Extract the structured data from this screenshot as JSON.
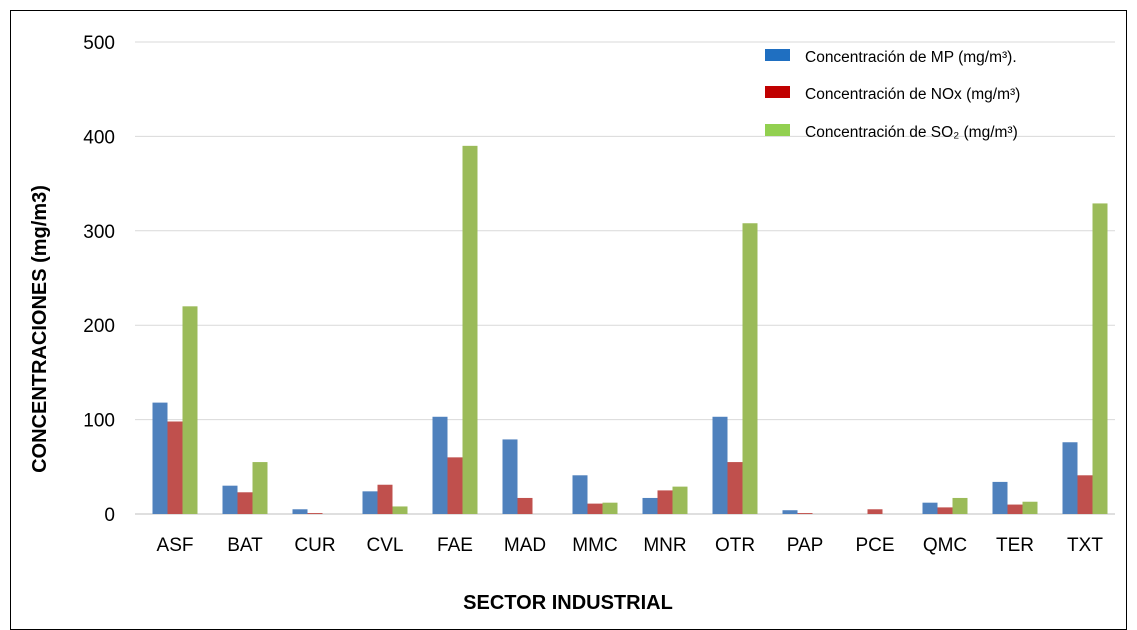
{
  "chart_data": {
    "type": "bar",
    "title": "",
    "xlabel": "SECTOR INDUSTRIAL",
    "ylabel": "CONCENTRACIONES (mg/m3)",
    "ylim": [
      0,
      500
    ],
    "yticks": [
      "0",
      "100",
      "200",
      "300",
      "400",
      "500"
    ],
    "grid": true,
    "legend_position": "top-right",
    "categories": [
      "ASF",
      "BAT",
      "CUR",
      "CVL",
      "FAE",
      "MAD",
      "MMC",
      "MNR",
      "OTR",
      "PAP",
      "PCE",
      "QMC",
      "TER",
      "TXT"
    ],
    "series": [
      {
        "name": "Concentración de MP (mg/m³).",
        "color": "#4f81bd",
        "values": [
          118,
          30,
          5,
          24,
          103,
          79,
          41,
          17,
          103,
          4,
          0,
          12,
          34,
          76
        ]
      },
      {
        "name": "Concentración de NOx (mg/m³)",
        "color": "#c0504d",
        "values": [
          98,
          23,
          1,
          31,
          60,
          17,
          11,
          25,
          55,
          1,
          5,
          7,
          10,
          41
        ]
      },
      {
        "name": "Concentración de SO₂ (mg/m³)",
        "color": "#9bbb59",
        "values": [
          220,
          55,
          0,
          8,
          390,
          0,
          12,
          29,
          308,
          0,
          0,
          17,
          13,
          329
        ]
      }
    ],
    "legend_swatch_colors": [
      "#1f6fc1",
      "#c00000",
      "#92d050"
    ]
  }
}
